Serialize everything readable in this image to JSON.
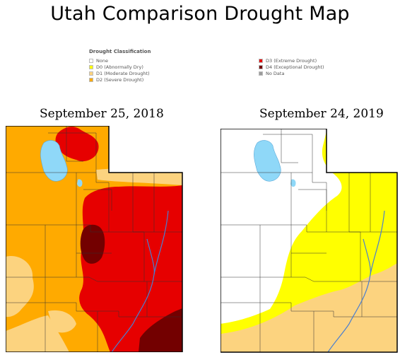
{
  "title": "Utah Comparison Drought Map",
  "legend": {
    "title": "Drought Classification",
    "left_items": [
      {
        "label": "None",
        "color": "#ffffff"
      },
      {
        "label": "D0 (Abnormally Dry)",
        "color": "#ffff00"
      },
      {
        "label": "D1 (Moderate Drought)",
        "color": "#fcd37f"
      },
      {
        "label": "D2 (Severe Drought)",
        "color": "#ffaa00"
      }
    ],
    "right_items": [
      {
        "label": "D3 (Extreme Drought)",
        "color": "#e60000"
      },
      {
        "label": "D4 (Exceptional Drought)",
        "color": "#730000"
      },
      {
        "label": "No Data",
        "color": "#9b9b9b"
      }
    ]
  },
  "maps": [
    {
      "date": "September 25, 2018"
    },
    {
      "date": "September 24, 2019"
    }
  ],
  "colors": {
    "none": "#ffffff",
    "d0": "#ffff00",
    "d1": "#fcd37f",
    "d2": "#ffaa00",
    "d3": "#e60000",
    "d4": "#730000",
    "water": "#8fd8f8",
    "rivers": "#4a7fd0",
    "county_lines": "#333333"
  }
}
